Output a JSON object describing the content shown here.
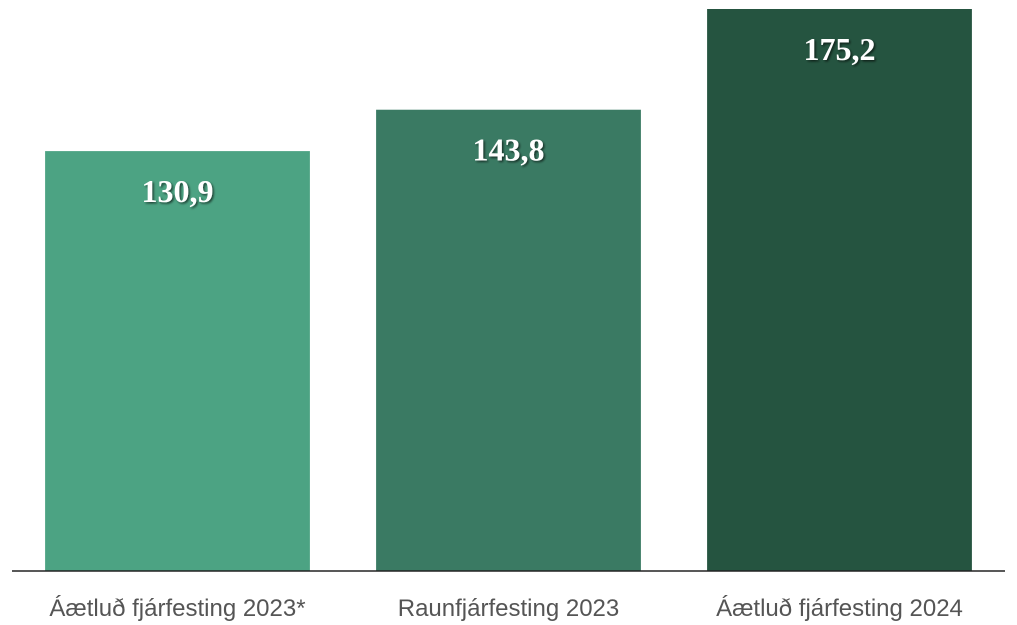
{
  "chart_data": {
    "type": "bar",
    "categories": [
      "Áætluð fjárfesting 2023*",
      "Raunfjárfesting 2023",
      "Áætluð fjárfesting 2024"
    ],
    "values": [
      130.9,
      143.8,
      175.2
    ],
    "value_labels": [
      "130,9",
      "143,8",
      "175,2"
    ],
    "colors": [
      "#4ca383",
      "#3a7a63",
      "#255440"
    ],
    "ylim": [
      0,
      175.2
    ]
  }
}
